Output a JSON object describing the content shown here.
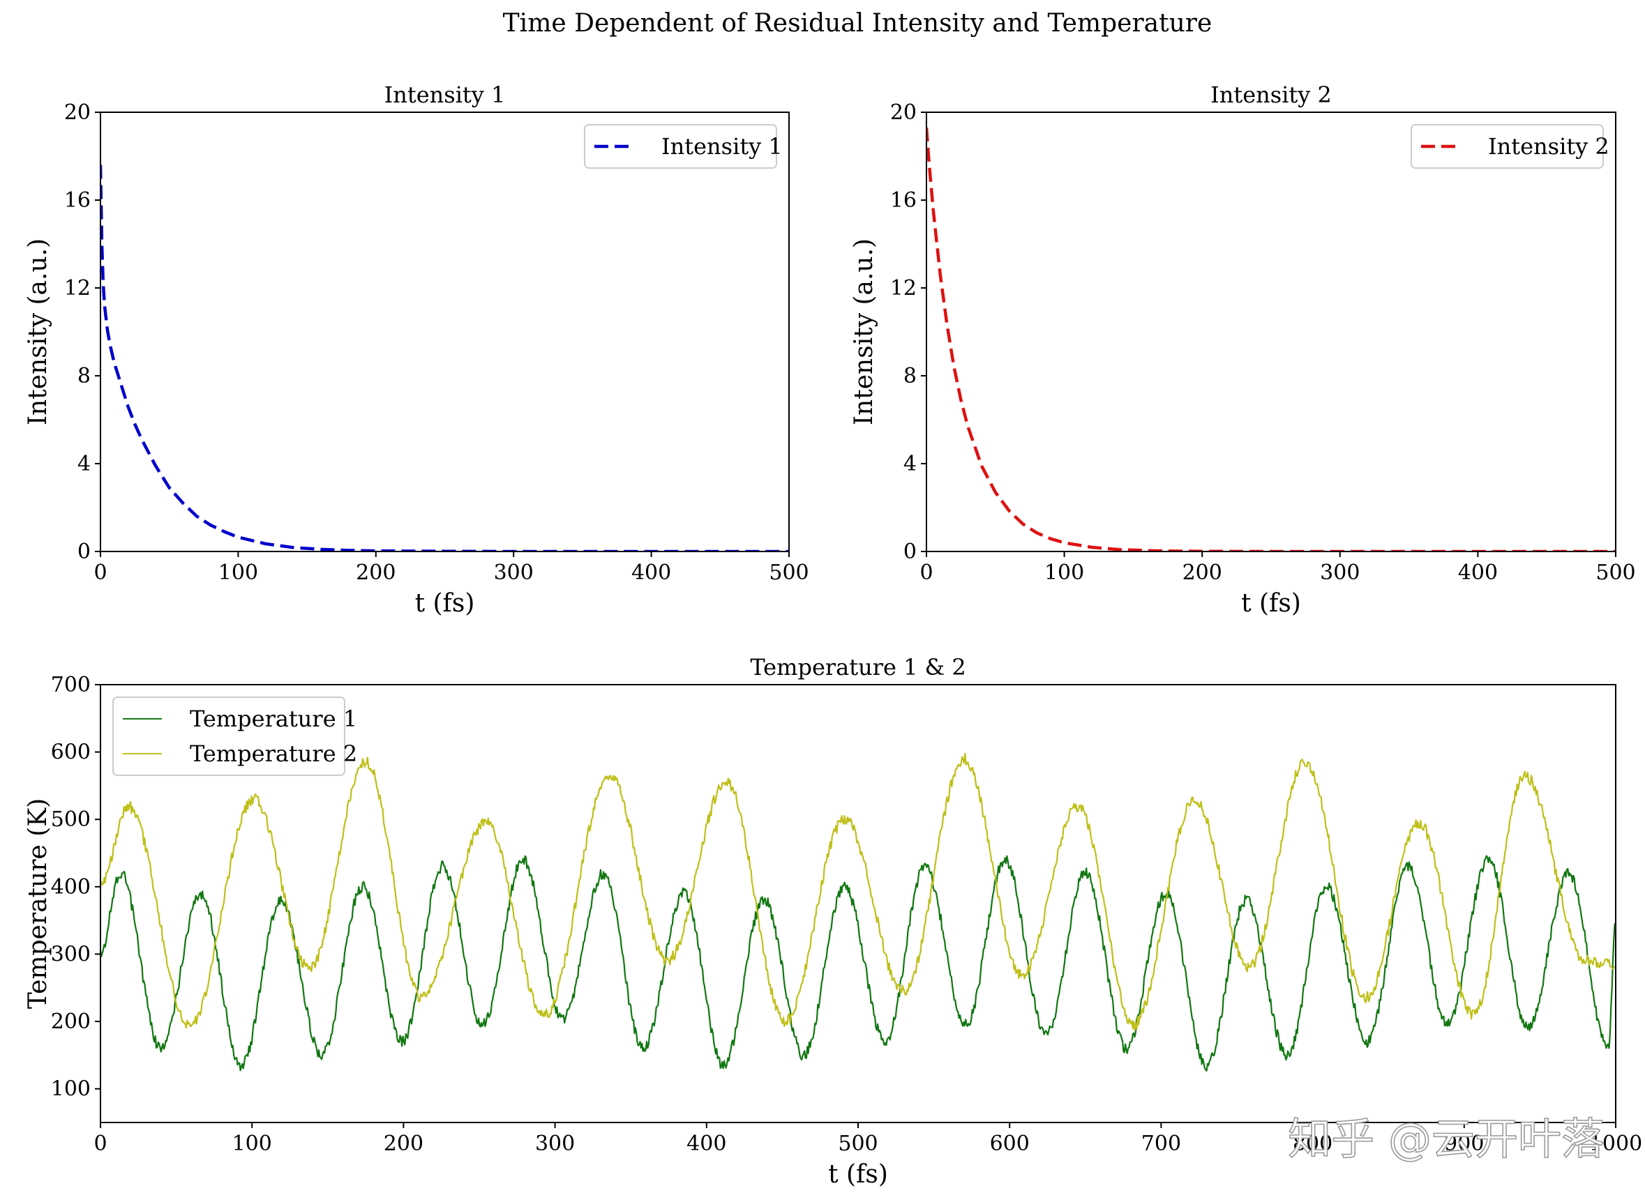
{
  "figure": {
    "title": "Time Dependent of Residual Intensity and Temperature",
    "watermark": "知乎 @云开叶落"
  },
  "chart_data": [
    {
      "id": "intensity1",
      "type": "line",
      "title": "Intensity 1",
      "xlabel": "t (fs)",
      "ylabel": "Intensity (a.u.)",
      "xlim": [
        0,
        500
      ],
      "ylim": [
        0,
        20
      ],
      "xticks": [
        "0",
        "100",
        "200",
        "300",
        "400",
        "500"
      ],
      "yticks": [
        "0",
        "4",
        "8",
        "12",
        "16",
        "20"
      ],
      "legend": "upper right",
      "grid": false,
      "series": [
        {
          "name": "Intensity 1",
          "color": "#0000cc",
          "style": "dashed",
          "x": [
            0,
            1,
            2,
            3,
            5,
            7,
            10,
            15,
            20,
            25,
            30,
            40,
            50,
            60,
            70,
            80,
            90,
            100,
            120,
            140,
            160,
            180,
            200,
            250,
            300,
            400,
            500
          ],
          "y": [
            17.6,
            14.0,
            12.2,
            11.2,
            10.1,
            9.4,
            8.6,
            7.6,
            6.6,
            5.8,
            5.1,
            3.9,
            2.9,
            2.2,
            1.6,
            1.2,
            0.9,
            0.65,
            0.35,
            0.18,
            0.1,
            0.05,
            0.03,
            0.01,
            0,
            0,
            0
          ]
        }
      ]
    },
    {
      "id": "intensity2",
      "type": "line",
      "title": "Intensity 2",
      "xlabel": "t (fs)",
      "ylabel": "Intensity (a.u.)",
      "xlim": [
        0,
        500
      ],
      "ylim": [
        0,
        20
      ],
      "xticks": [
        "0",
        "100",
        "200",
        "300",
        "400",
        "500"
      ],
      "yticks": [
        "0",
        "4",
        "8",
        "12",
        "16",
        "20"
      ],
      "legend": "upper right",
      "grid": false,
      "series": [
        {
          "name": "Intensity 2",
          "color": "#dd1111",
          "style": "dashed",
          "x": [
            0,
            2,
            5,
            10,
            15,
            20,
            25,
            30,
            40,
            50,
            60,
            70,
            80,
            90,
            100,
            120,
            140,
            160,
            180,
            200,
            250,
            300,
            400,
            500
          ],
          "y": [
            19.3,
            17.6,
            15.5,
            12.6,
            10.3,
            8.4,
            6.9,
            5.7,
            3.9,
            2.7,
            1.85,
            1.25,
            0.85,
            0.58,
            0.4,
            0.19,
            0.09,
            0.04,
            0.02,
            0.01,
            0,
            0,
            0,
            0
          ]
        }
      ]
    },
    {
      "id": "temperature",
      "type": "line",
      "title": "Temperature 1 & 2",
      "xlabel": "t (fs)",
      "ylabel": "Temperature (K)",
      "xlim": [
        0,
        1000
      ],
      "ylim": [
        50,
        700
      ],
      "xticks": [
        "0",
        "100",
        "200",
        "300",
        "400",
        "500",
        "600",
        "700",
        "800",
        "900",
        "1000"
      ],
      "yticks": [
        "100",
        "200",
        "300",
        "400",
        "500",
        "600",
        "700"
      ],
      "legend": "upper left",
      "grid": false,
      "series": [
        {
          "name": "Temperature 1",
          "color": "#117711",
          "style": "solid",
          "x": [
            0,
            13,
            40,
            66,
            93,
            119,
            146,
            173,
            199,
            226,
            252,
            279,
            305,
            332,
            358,
            385,
            411,
            438,
            464,
            491,
            518,
            544,
            571,
            597,
            624,
            650,
            677,
            703,
            730,
            756,
            783,
            809,
            836,
            863,
            889,
            916,
            942,
            969,
            995,
            1000
          ],
          "y": [
            300,
            420,
            160,
            390,
            135,
            380,
            150,
            400,
            170,
            430,
            195,
            440,
            205,
            420,
            160,
            390,
            135,
            380,
            150,
            400,
            170,
            430,
            195,
            440,
            180,
            420,
            160,
            390,
            135,
            380,
            150,
            400,
            170,
            430,
            195,
            440,
            190,
            420,
            160,
            345
          ]
        },
        {
          "name": "Temperature 2",
          "color": "#bfbf1a",
          "style": "solid",
          "x": [
            0,
            18,
            59,
            101,
            138,
            175,
            212,
            254,
            293,
            336,
            374,
            413,
            452,
            491,
            530,
            570,
            608,
            645,
            682,
            722,
            758,
            795,
            835,
            870,
            906,
            940,
            980,
            1000
          ],
          "y": [
            400,
            520,
            195,
            530,
            280,
            585,
            235,
            495,
            210,
            565,
            290,
            555,
            200,
            500,
            245,
            590,
            270,
            520,
            195,
            530,
            280,
            585,
            235,
            495,
            210,
            565,
            290,
            285
          ]
        }
      ]
    }
  ]
}
